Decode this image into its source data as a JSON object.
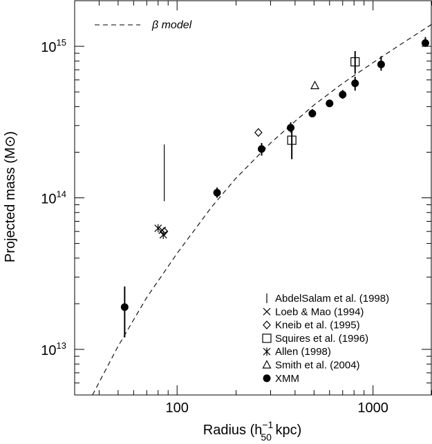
{
  "chart_data": {
    "type": "scatter",
    "xlabel": {
      "prefix": "Radius (h",
      "sup": "−1",
      "sub": "50",
      "suffix": " kpc)"
    },
    "ylabel": {
      "text": "Projected mass (M",
      "sym": "⊙",
      "suffix": ")"
    },
    "x_scale": "log",
    "y_scale": "log",
    "xlim": [
      30,
      2000
    ],
    "ylim": [
      5000000000000.0,
      2000000000000000.0
    ],
    "x_tick_labels": [
      {
        "value": 100,
        "label": "100"
      },
      {
        "value": 1000,
        "label": "1000"
      }
    ],
    "y_tick_labels": [
      {
        "value": 10000000000000.0,
        "base": "10",
        "exp": "13"
      },
      {
        "value": 100000000000000.0,
        "base": "10",
        "exp": "14"
      },
      {
        "value": 1000000000000000.0,
        "base": "10",
        "exp": "15"
      }
    ],
    "beta_model": {
      "legend": "β model",
      "points": [
        [
          37,
          5000000000000.0
        ],
        [
          50,
          10500000000000.0
        ],
        [
          70,
          22000000000000.0
        ],
        [
          100,
          43000000000000.0
        ],
        [
          150,
          87000000000000.0
        ],
        [
          200,
          135000000000000.0
        ],
        [
          300,
          230000000000000.0
        ],
        [
          400,
          320000000000000.0
        ],
        [
          500,
          410000000000000.0
        ],
        [
          700,
          570000000000000.0
        ],
        [
          1000,
          780000000000000.0
        ],
        [
          1400,
          1040000000000000.0
        ],
        [
          2000,
          1400000000000000.0
        ]
      ]
    },
    "series": [
      {
        "name": "AbdelSalam et al. (1998)",
        "marker": "bar",
        "points": [
          {
            "x": 86,
            "y_low": 95000000000000.0,
            "y_high": 225000000000000.0
          }
        ]
      },
      {
        "name": "Loeb & Mao (1994)",
        "marker": "x",
        "points": [
          {
            "x": 84,
            "y": 61000000000000.0
          }
        ]
      },
      {
        "name": "Kneib et al. (1995)",
        "marker": "diamond",
        "points": [
          {
            "x": 86,
            "y": 60000000000000.0
          },
          {
            "x": 260,
            "y": 270000000000000.0
          }
        ]
      },
      {
        "name": "Squires et al. (1996)",
        "marker": "square",
        "points": [
          {
            "x": 385,
            "y": 240000000000000.0,
            "y_low": 180000000000000.0,
            "y_high": 295000000000000.0
          },
          {
            "x": 810,
            "y": 790000000000000.0,
            "y_low": 660000000000000.0,
            "y_high": 930000000000000.0
          }
        ]
      },
      {
        "name": "Allen (1998)",
        "marker": "asterisk",
        "points": [
          {
            "x": 80,
            "y": 63000000000000.0
          },
          {
            "x": 85,
            "y": 57000000000000.0
          }
        ]
      },
      {
        "name": "Smith et al. (2004)",
        "marker": "triangle",
        "points": [
          {
            "x": 505,
            "y": 550000000000000.0
          }
        ]
      },
      {
        "name": "XMM",
        "marker": "dot",
        "points": [
          {
            "x": 54,
            "y": 19000000000000.0,
            "y_low": 12000000000000.0,
            "y_high": 26000000000000.0
          },
          {
            "x": 160,
            "y": 108000000000000.0,
            "y_low": 100000000000000.0,
            "y_high": 117000000000000.0
          },
          {
            "x": 270,
            "y": 210000000000000.0,
            "y_low": 190000000000000.0,
            "y_high": 230000000000000.0
          },
          {
            "x": 380,
            "y": 290000000000000.0,
            "y_low": 270000000000000.0,
            "y_high": 315000000000000.0
          },
          {
            "x": 490,
            "y": 360000000000000.0,
            "y_low": 340000000000000.0,
            "y_high": 385000000000000.0
          },
          {
            "x": 600,
            "y": 420000000000000.0,
            "y_low": 400000000000000.0,
            "y_high": 445000000000000.0
          },
          {
            "x": 700,
            "y": 480000000000000.0,
            "y_low": 450000000000000.0,
            "y_high": 515000000000000.0
          },
          {
            "x": 810,
            "y": 570000000000000.0,
            "y_low": 510000000000000.0,
            "y_high": 630000000000000.0
          },
          {
            "x": 1100,
            "y": 760000000000000.0,
            "y_low": 690000000000000.0,
            "y_high": 860000000000000.0
          },
          {
            "x": 1850,
            "y": 1050000000000000.0,
            "y_low": 1000000000000000.0,
            "y_high": 1150000000000000.0
          }
        ]
      }
    ]
  }
}
